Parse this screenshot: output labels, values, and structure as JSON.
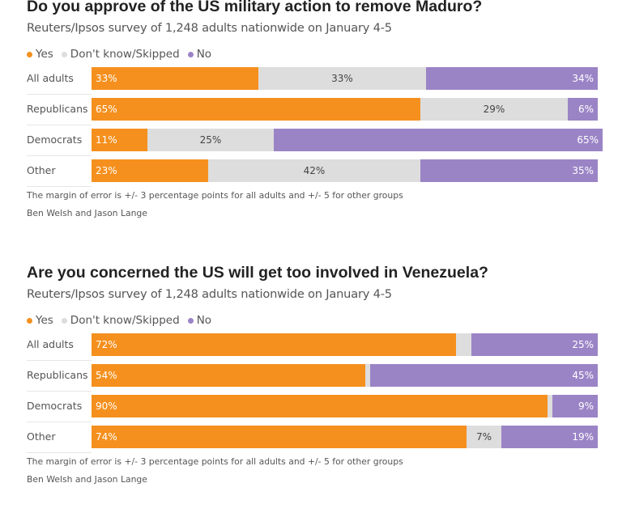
{
  "legend": {
    "yes": "Yes",
    "dk": "Don't know/Skipped",
    "no": "No"
  },
  "colors": {
    "yes": "#f5901e",
    "dk": "#dddddd",
    "no": "#9b84c6"
  },
  "chart_data": [
    {
      "type": "bar",
      "stacked": true,
      "orientation": "horizontal",
      "title": "Do you approve of the US military action to remove Maduro?",
      "subtitle": "Reuters/Ipsos survey of 1,248 adults nationwide on January 4-5",
      "categories": [
        "All adults",
        "Republicans",
        "Democrats",
        "Other"
      ],
      "series": [
        {
          "name": "Yes",
          "values": [
            33,
            65,
            11,
            23
          ]
        },
        {
          "name": "Don't know/Skipped",
          "values": [
            33,
            29,
            25,
            42
          ]
        },
        {
          "name": "No",
          "values": [
            34,
            6,
            65,
            35
          ]
        }
      ],
      "note": "The margin of error is +/- 3 percentage points for all adults and +/- 5 for other groups",
      "credit": "Ben Welsh and Jason Lange"
    },
    {
      "type": "bar",
      "stacked": true,
      "orientation": "horizontal",
      "title": "Are you concerned the US will get too involved in Venezuela?",
      "subtitle": "Reuters/Ipsos survey of 1,248 adults nationwide on January 4-5",
      "categories": [
        "All adults",
        "Republicans",
        "Democrats",
        "Other"
      ],
      "series": [
        {
          "name": "Yes",
          "values": [
            72,
            54,
            90,
            74
          ]
        },
        {
          "name": "Don't know/Skipped",
          "values": [
            3,
            1,
            1,
            7
          ]
        },
        {
          "name": "No",
          "values": [
            25,
            45,
            9,
            19
          ]
        }
      ],
      "hide_labels_below": 5,
      "note": "The margin of error is +/- 3 percentage points for all adults and +/- 5 for other groups",
      "credit": "Ben Welsh and Jason Lange"
    }
  ]
}
